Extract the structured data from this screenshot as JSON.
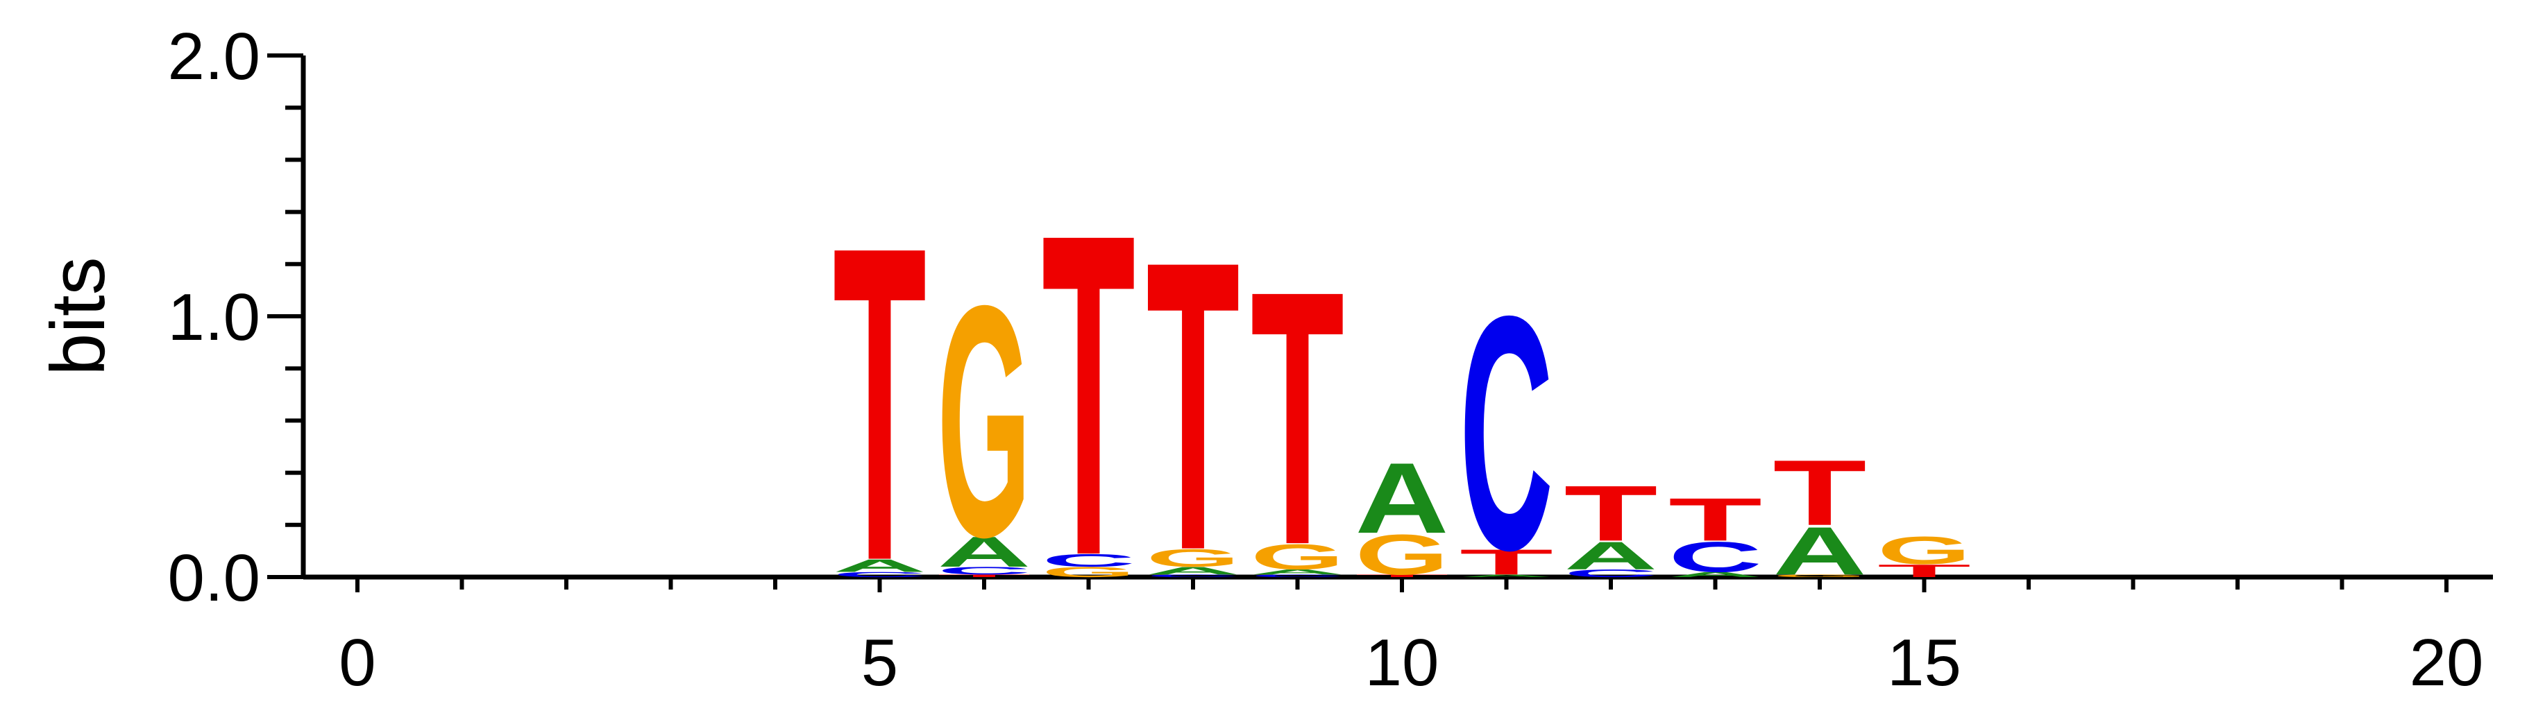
{
  "chart_data": {
    "type": "sequence-logo",
    "title": "",
    "ylabel": "bits",
    "xlabel": "",
    "ylim": [
      0,
      2.0
    ],
    "xlim": [
      -0.5,
      20.5
    ],
    "y_ticks": [
      "0.0",
      "1.0",
      "2.0"
    ],
    "x_ticks": [
      "0",
      "5",
      "10",
      "15",
      "20"
    ],
    "colors": {
      "A": "#1a8a1a",
      "C": "#0000ee",
      "G": "#f5a000",
      "T": "#ee0000"
    },
    "positions": [
      {
        "pos": 5,
        "stack": [
          {
            "base": "C",
            "bits": 0.02
          },
          {
            "base": "A",
            "bits": 0.05
          },
          {
            "base": "T",
            "bits": 1.25
          }
        ]
      },
      {
        "pos": 6,
        "stack": [
          {
            "base": "T",
            "bits": 0.01
          },
          {
            "base": "C",
            "bits": 0.03
          },
          {
            "base": "A",
            "bits": 0.12
          },
          {
            "base": "G",
            "bits": 0.92
          }
        ]
      },
      {
        "pos": 7,
        "stack": [
          {
            "base": "G",
            "bits": 0.04
          },
          {
            "base": "C",
            "bits": 0.05
          },
          {
            "base": "T",
            "bits": 1.28
          }
        ]
      },
      {
        "pos": 8,
        "stack": [
          {
            "base": "C",
            "bits": 0.01
          },
          {
            "base": "A",
            "bits": 0.03
          },
          {
            "base": "G",
            "bits": 0.07
          },
          {
            "base": "T",
            "bits": 1.15
          }
        ]
      },
      {
        "pos": 9,
        "stack": [
          {
            "base": "C",
            "bits": 0.01
          },
          {
            "base": "A",
            "bits": 0.02
          },
          {
            "base": "G",
            "bits": 0.1
          },
          {
            "base": "T",
            "bits": 1.01
          }
        ]
      },
      {
        "pos": 10,
        "stack": [
          {
            "base": "T",
            "bits": 0.01
          },
          {
            "base": "G",
            "bits": 0.16
          },
          {
            "base": "A",
            "bits": 0.28
          }
        ]
      },
      {
        "pos": 11,
        "stack": [
          {
            "base": "A",
            "bits": 0.01
          },
          {
            "base": "T",
            "bits": 0.1
          },
          {
            "base": "C",
            "bits": 0.93
          }
        ]
      },
      {
        "pos": 12,
        "stack": [
          {
            "base": "C",
            "bits": 0.03
          },
          {
            "base": "A",
            "bits": 0.11
          },
          {
            "base": "T",
            "bits": 0.22
          }
        ]
      },
      {
        "pos": 13,
        "stack": [
          {
            "base": "A",
            "bits": 0.02
          },
          {
            "base": "C",
            "bits": 0.12
          },
          {
            "base": "T",
            "bits": 0.17
          }
        ]
      },
      {
        "pos": 14,
        "stack": [
          {
            "base": "G",
            "bits": 0.01
          },
          {
            "base": "A",
            "bits": 0.19
          },
          {
            "base": "T",
            "bits": 0.26
          }
        ]
      },
      {
        "pos": 15,
        "stack": [
          {
            "base": "T",
            "bits": 0.05
          },
          {
            "base": "G",
            "bits": 0.11
          }
        ]
      }
    ],
    "grid": false,
    "legend": "none"
  }
}
